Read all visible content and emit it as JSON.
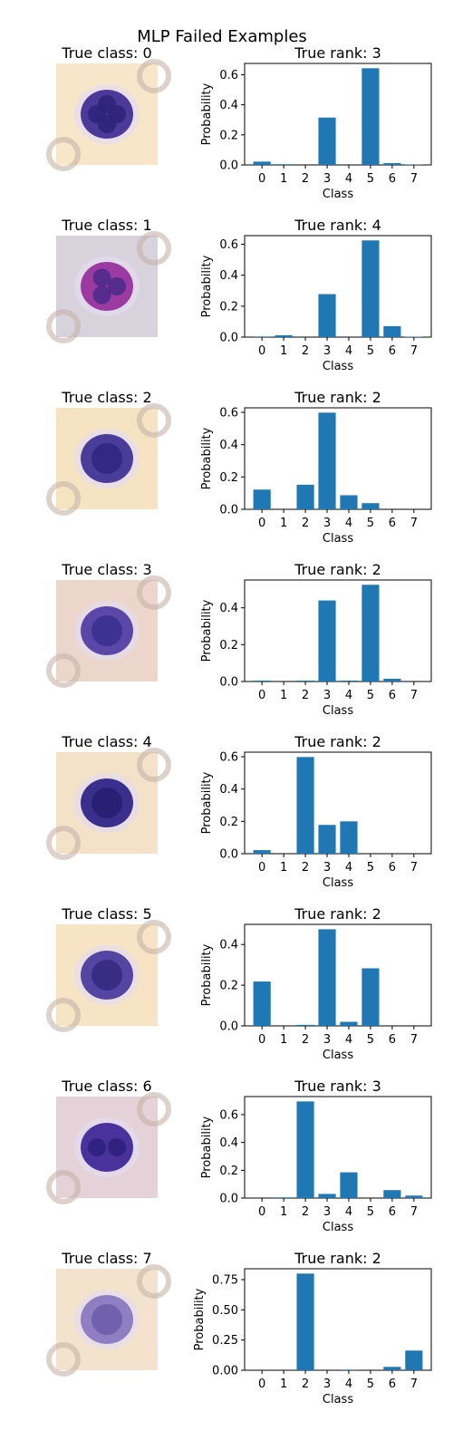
{
  "suptitle": "MLP Failed Examples",
  "image_title_prefix": "True class: ",
  "chart_title_prefix": "True rank: ",
  "xlabel": "Class",
  "ylabel": "Probability",
  "bar_color": "#1f77b4",
  "chart_data": [
    {
      "type": "bar",
      "true_class": 0,
      "title": "True rank: 3",
      "xlabel": "Class",
      "ylabel": "Probability",
      "categories": [
        "0",
        "1",
        "2",
        "3",
        "4",
        "5",
        "6",
        "7"
      ],
      "values": [
        0.022,
        0.005,
        0.0,
        0.315,
        0.0,
        0.643,
        0.012,
        0.002
      ],
      "ylim": [
        0,
        0.675
      ],
      "yticks": [
        "0.0",
        "0.2",
        "0.4",
        "0.6"
      ],
      "ytick_values": [
        0,
        0.2,
        0.4,
        0.6
      ],
      "image": {
        "bg": "#f7e6c8",
        "cell": "#4b3a9a",
        "dark": "#2e2278",
        "nuclei": 4
      }
    },
    {
      "type": "bar",
      "true_class": 1,
      "title": "True rank: 4",
      "xlabel": "Class",
      "ylabel": "Probability",
      "categories": [
        "0",
        "1",
        "2",
        "3",
        "4",
        "5",
        "6",
        "7"
      ],
      "values": [
        0.004,
        0.012,
        0.0,
        0.278,
        0.0,
        0.625,
        0.071,
        0.003
      ],
      "ylim": [
        0,
        0.656
      ],
      "yticks": [
        "0.0",
        "0.2",
        "0.4",
        "0.6"
      ],
      "ytick_values": [
        0,
        0.2,
        0.4,
        0.6
      ],
      "image": {
        "bg": "#d8d2dc",
        "cell": "#9b3aa0",
        "dark": "#4a2a8a",
        "nuclei": 3
      }
    },
    {
      "type": "bar",
      "true_class": 2,
      "title": "True rank: 2",
      "xlabel": "Class",
      "ylabel": "Probability",
      "categories": [
        "0",
        "1",
        "2",
        "3",
        "4",
        "5",
        "6",
        "7"
      ],
      "values": [
        0.122,
        0.0,
        0.152,
        0.598,
        0.087,
        0.038,
        0.0,
        0.0
      ],
      "ylim": [
        0,
        0.628
      ],
      "yticks": [
        "0.0",
        "0.2",
        "0.4",
        "0.6"
      ],
      "ytick_values": [
        0,
        0.2,
        0.4,
        0.6
      ],
      "image": {
        "bg": "#f5e3c2",
        "cell": "#4a3d9a",
        "dark": "#2f2580",
        "nuclei": 1
      }
    },
    {
      "type": "bar",
      "true_class": 3,
      "title": "True rank: 2",
      "xlabel": "Class",
      "ylabel": "Probability",
      "categories": [
        "0",
        "1",
        "2",
        "3",
        "4",
        "5",
        "6",
        "7"
      ],
      "values": [
        0.005,
        0.0,
        0.005,
        0.44,
        0.005,
        0.525,
        0.015,
        0.0
      ],
      "ylim": [
        0,
        0.551
      ],
      "yticks": [
        "0.0",
        "0.2",
        "0.4"
      ],
      "ytick_values": [
        0,
        0.2,
        0.4
      ],
      "image": {
        "bg": "#ecd6cc",
        "cell": "#5a47a8",
        "dark": "#3a2f8c",
        "nuclei": 1
      }
    },
    {
      "type": "bar",
      "true_class": 4,
      "title": "True rank: 2",
      "xlabel": "Class",
      "ylabel": "Probability",
      "categories": [
        "0",
        "1",
        "2",
        "3",
        "4",
        "5",
        "6",
        "7"
      ],
      "values": [
        0.022,
        0.0,
        0.598,
        0.178,
        0.2,
        0.0,
        0.0,
        0.0
      ],
      "ylim": [
        0,
        0.628
      ],
      "yticks": [
        "0.0",
        "0.2",
        "0.4",
        "0.6"
      ],
      "ytick_values": [
        0,
        0.2,
        0.4,
        0.6
      ],
      "image": {
        "bg": "#f4e2c8",
        "cell": "#3b2f8e",
        "dark": "#271d70",
        "nuclei": 1
      }
    },
    {
      "type": "bar",
      "true_class": 5,
      "title": "True rank: 2",
      "xlabel": "Class",
      "ylabel": "Probability",
      "categories": [
        "0",
        "1",
        "2",
        "3",
        "4",
        "5",
        "6",
        "7"
      ],
      "values": [
        0.218,
        0.0,
        0.005,
        0.475,
        0.02,
        0.283,
        0.0,
        0.0
      ],
      "ylim": [
        0,
        0.499
      ],
      "yticks": [
        "0.0",
        "0.2",
        "0.4"
      ],
      "ytick_values": [
        0,
        0.2,
        0.4
      ],
      "image": {
        "bg": "#f6e4c4",
        "cell": "#5545a3",
        "dark": "#35287e",
        "nuclei": 1
      }
    },
    {
      "type": "bar",
      "true_class": 6,
      "title": "True rank: 3",
      "xlabel": "Class",
      "ylabel": "Probability",
      "categories": [
        "0",
        "1",
        "2",
        "3",
        "4",
        "5",
        "6",
        "7"
      ],
      "values": [
        0.0,
        0.005,
        0.695,
        0.03,
        0.185,
        0.0,
        0.057,
        0.018
      ],
      "ylim": [
        0,
        0.73
      ],
      "yticks": [
        "0.0",
        "0.2",
        "0.4",
        "0.6"
      ],
      "ytick_values": [
        0,
        0.2,
        0.4,
        0.6
      ],
      "image": {
        "bg": "#e4d2d8",
        "cell": "#4a329c",
        "dark": "#2d1e7c",
        "nuclei": 2
      }
    },
    {
      "type": "bar",
      "true_class": 7,
      "title": "True rank: 2",
      "xlabel": "Class",
      "ylabel": "Probability",
      "categories": [
        "0",
        "1",
        "2",
        "3",
        "4",
        "5",
        "6",
        "7"
      ],
      "values": [
        0.0,
        0.0,
        0.8,
        0.0,
        0.005,
        0.0,
        0.028,
        0.163
      ],
      "ylim": [
        0,
        0.84
      ],
      "yticks": [
        "0.00",
        "0.25",
        "0.50",
        "0.75"
      ],
      "ytick_values": [
        0,
        0.25,
        0.5,
        0.75
      ],
      "image": {
        "bg": "#f3e3cc",
        "cell": "#8f7fc2",
        "dark": "#6c5aa8",
        "nuclei": 1
      }
    }
  ]
}
